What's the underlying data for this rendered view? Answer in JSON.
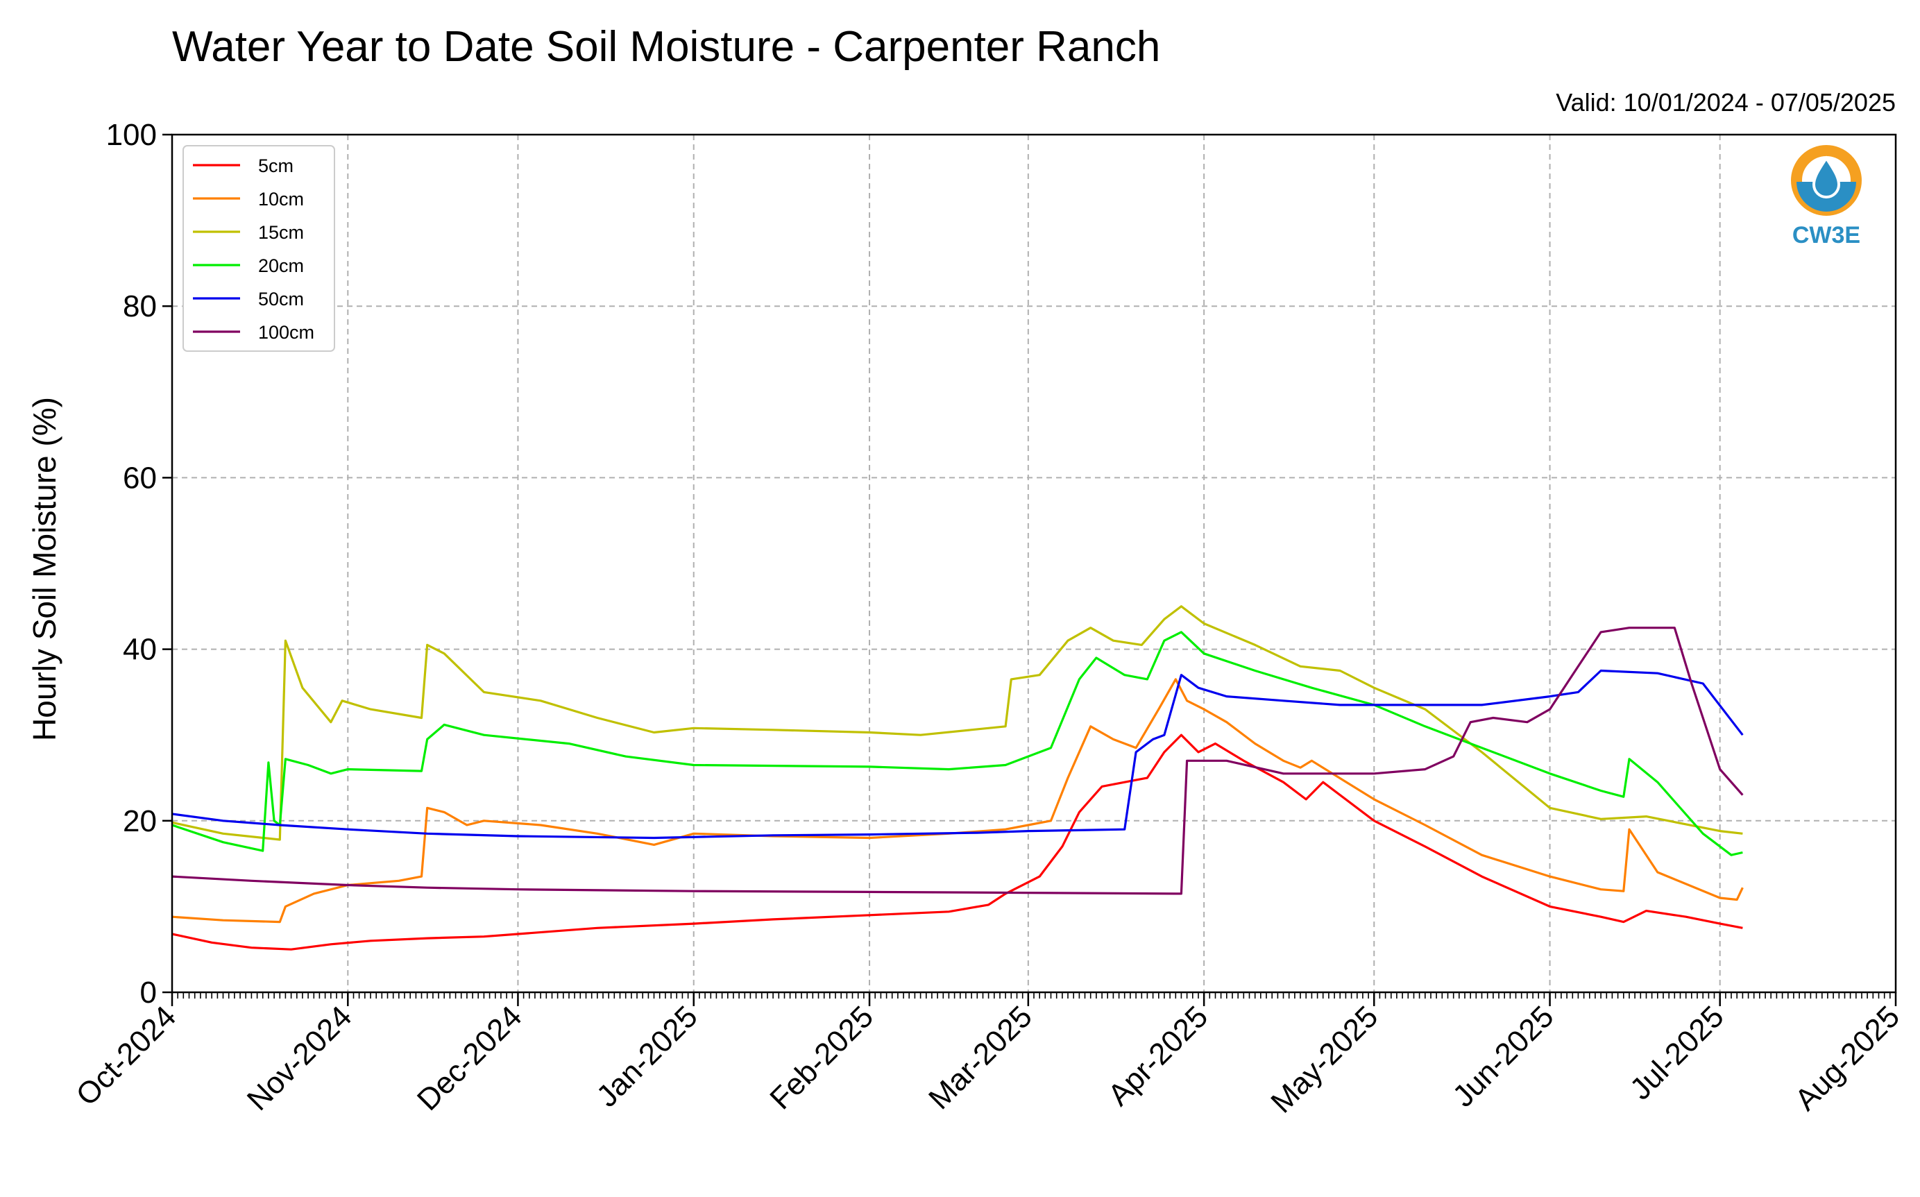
{
  "chart_data": {
    "type": "line",
    "title": "Water Year to Date Soil Moisture - Carpenter Ranch",
    "subtitle": "Valid: 10/01/2024 - 07/05/2025",
    "xlabel": "",
    "ylabel": "Hourly Soil Moisture (%)",
    "xlim": [
      "2024-10-01",
      "2025-08-01"
    ],
    "ylim": [
      0,
      100
    ],
    "yticks": [
      0,
      20,
      40,
      60,
      80,
      100
    ],
    "xticks": [
      {
        "date": "2024-10-01",
        "label": "Oct-2024"
      },
      {
        "date": "2024-11-01",
        "label": "Nov-2024"
      },
      {
        "date": "2024-12-01",
        "label": "Dec-2024"
      },
      {
        "date": "2025-01-01",
        "label": "Jan-2025"
      },
      {
        "date": "2025-02-01",
        "label": "Feb-2025"
      },
      {
        "date": "2025-03-01",
        "label": "Mar-2025"
      },
      {
        "date": "2025-04-01",
        "label": "Apr-2025"
      },
      {
        "date": "2025-05-01",
        "label": "May-2025"
      },
      {
        "date": "2025-06-01",
        "label": "Jun-2025"
      },
      {
        "date": "2025-07-01",
        "label": "Jul-2025"
      },
      {
        "date": "2025-08-01",
        "label": "Aug-2025"
      }
    ],
    "grid": true,
    "legend_position": "top-left",
    "series": [
      {
        "name": "5cm",
        "color": "#ff0000",
        "points": [
          [
            "2024-10-01",
            6.8
          ],
          [
            "2024-10-08",
            5.8
          ],
          [
            "2024-10-15",
            5.2
          ],
          [
            "2024-10-22",
            5.0
          ],
          [
            "2024-10-29",
            5.6
          ],
          [
            "2024-11-05",
            6.0
          ],
          [
            "2024-11-15",
            6.3
          ],
          [
            "2024-11-25",
            6.5
          ],
          [
            "2024-12-01",
            6.8
          ],
          [
            "2024-12-15",
            7.5
          ],
          [
            "2025-01-01",
            8.0
          ],
          [
            "2025-01-15",
            8.5
          ],
          [
            "2025-02-01",
            9.0
          ],
          [
            "2025-02-15",
            9.4
          ],
          [
            "2025-02-22",
            10.2
          ],
          [
            "2025-02-25",
            11.5
          ],
          [
            "2025-03-03",
            13.5
          ],
          [
            "2025-03-07",
            17.0
          ],
          [
            "2025-03-10",
            21.0
          ],
          [
            "2025-03-14",
            24.0
          ],
          [
            "2025-03-18",
            24.5
          ],
          [
            "2025-03-22",
            25.0
          ],
          [
            "2025-03-25",
            28.0
          ],
          [
            "2025-03-28",
            30.0
          ],
          [
            "2025-03-31",
            28.0
          ],
          [
            "2025-04-03",
            29.0
          ],
          [
            "2025-04-08",
            27.0
          ],
          [
            "2025-04-15",
            24.5
          ],
          [
            "2025-04-19",
            22.5
          ],
          [
            "2025-04-22",
            24.5
          ],
          [
            "2025-05-01",
            20.0
          ],
          [
            "2025-05-10",
            17.0
          ],
          [
            "2025-05-20",
            13.5
          ],
          [
            "2025-06-01",
            10.0
          ],
          [
            "2025-06-10",
            8.8
          ],
          [
            "2025-06-14",
            8.2
          ],
          [
            "2025-06-18",
            9.5
          ],
          [
            "2025-06-25",
            8.8
          ],
          [
            "2025-07-01",
            8.0
          ],
          [
            "2025-07-05",
            7.5
          ]
        ]
      },
      {
        "name": "10cm",
        "color": "#ff8000",
        "points": [
          [
            "2024-10-01",
            8.8
          ],
          [
            "2024-10-10",
            8.4
          ],
          [
            "2024-10-20",
            8.2
          ],
          [
            "2024-10-21",
            10.0
          ],
          [
            "2024-10-26",
            11.5
          ],
          [
            "2024-11-01",
            12.5
          ],
          [
            "2024-11-10",
            13.0
          ],
          [
            "2024-11-14",
            13.5
          ],
          [
            "2024-11-15",
            21.5
          ],
          [
            "2024-11-18",
            21.0
          ],
          [
            "2024-11-22",
            19.5
          ],
          [
            "2024-11-25",
            20.0
          ],
          [
            "2024-12-05",
            19.5
          ],
          [
            "2024-12-15",
            18.5
          ],
          [
            "2024-12-25",
            17.2
          ],
          [
            "2025-01-01",
            18.5
          ],
          [
            "2025-01-15",
            18.2
          ],
          [
            "2025-02-01",
            18.0
          ],
          [
            "2025-02-15",
            18.5
          ],
          [
            "2025-02-25",
            19.0
          ],
          [
            "2025-03-01",
            19.5
          ],
          [
            "2025-03-05",
            20.0
          ],
          [
            "2025-03-08",
            25.0
          ],
          [
            "2025-03-12",
            31.0
          ],
          [
            "2025-03-16",
            29.5
          ],
          [
            "2025-03-20",
            28.5
          ],
          [
            "2025-03-24",
            33.0
          ],
          [
            "2025-03-27",
            36.5
          ],
          [
            "2025-03-29",
            34.0
          ],
          [
            "2025-04-01",
            33.0
          ],
          [
            "2025-04-05",
            31.5
          ],
          [
            "2025-04-10",
            29.0
          ],
          [
            "2025-04-15",
            27.0
          ],
          [
            "2025-04-18",
            26.2
          ],
          [
            "2025-04-20",
            27.0
          ],
          [
            "2025-05-01",
            22.5
          ],
          [
            "2025-05-10",
            19.5
          ],
          [
            "2025-05-20",
            16.0
          ],
          [
            "2025-06-01",
            13.5
          ],
          [
            "2025-06-10",
            12.0
          ],
          [
            "2025-06-14",
            11.8
          ],
          [
            "2025-06-15",
            19.0
          ],
          [
            "2025-06-20",
            14.0
          ],
          [
            "2025-07-01",
            11.0
          ],
          [
            "2025-07-04",
            10.8
          ],
          [
            "2025-07-05",
            12.2
          ]
        ]
      },
      {
        "name": "15cm",
        "color": "#c0c000",
        "points": [
          [
            "2024-10-01",
            19.8
          ],
          [
            "2024-10-10",
            18.5
          ],
          [
            "2024-10-20",
            17.8
          ],
          [
            "2024-10-21",
            41.0
          ],
          [
            "2024-10-24",
            35.5
          ],
          [
            "2024-10-29",
            31.5
          ],
          [
            "2024-10-31",
            34.0
          ],
          [
            "2024-11-05",
            33.0
          ],
          [
            "2024-11-14",
            32.0
          ],
          [
            "2024-11-15",
            40.5
          ],
          [
            "2024-11-18",
            39.5
          ],
          [
            "2024-11-25",
            35.0
          ],
          [
            "2024-12-05",
            34.0
          ],
          [
            "2024-12-15",
            32.0
          ],
          [
            "2024-12-25",
            30.3
          ],
          [
            "2025-01-01",
            30.8
          ],
          [
            "2025-01-15",
            30.6
          ],
          [
            "2025-02-01",
            30.3
          ],
          [
            "2025-02-10",
            30.0
          ],
          [
            "2025-02-25",
            31.0
          ],
          [
            "2025-02-26",
            36.5
          ],
          [
            "2025-03-03",
            37.0
          ],
          [
            "2025-03-08",
            41.0
          ],
          [
            "2025-03-12",
            42.5
          ],
          [
            "2025-03-16",
            41.0
          ],
          [
            "2025-03-21",
            40.5
          ],
          [
            "2025-03-25",
            43.5
          ],
          [
            "2025-03-28",
            45.0
          ],
          [
            "2025-04-01",
            43.0
          ],
          [
            "2025-04-10",
            40.5
          ],
          [
            "2025-04-18",
            38.0
          ],
          [
            "2025-04-25",
            37.5
          ],
          [
            "2025-05-01",
            35.5
          ],
          [
            "2025-05-10",
            33.0
          ],
          [
            "2025-05-20",
            28.0
          ],
          [
            "2025-06-01",
            21.5
          ],
          [
            "2025-06-10",
            20.2
          ],
          [
            "2025-06-18",
            20.5
          ],
          [
            "2025-07-01",
            18.8
          ],
          [
            "2025-07-05",
            18.5
          ]
        ]
      },
      {
        "name": "20cm",
        "color": "#00ee00",
        "points": [
          [
            "2024-10-01",
            19.5
          ],
          [
            "2024-10-10",
            17.5
          ],
          [
            "2024-10-17",
            16.5
          ],
          [
            "2024-10-18",
            26.8
          ],
          [
            "2024-10-19",
            20.0
          ],
          [
            "2024-10-20",
            19.5
          ],
          [
            "2024-10-21",
            27.2
          ],
          [
            "2024-10-25",
            26.5
          ],
          [
            "2024-10-29",
            25.5
          ],
          [
            "2024-11-01",
            26.0
          ],
          [
            "2024-11-14",
            25.8
          ],
          [
            "2024-11-15",
            29.5
          ],
          [
            "2024-11-18",
            31.2
          ],
          [
            "2024-11-25",
            30.0
          ],
          [
            "2024-12-10",
            29.0
          ],
          [
            "2024-12-20",
            27.5
          ],
          [
            "2025-01-01",
            26.5
          ],
          [
            "2025-02-01",
            26.3
          ],
          [
            "2025-02-15",
            26.0
          ],
          [
            "2025-02-25",
            26.5
          ],
          [
            "2025-03-05",
            28.5
          ],
          [
            "2025-03-10",
            36.5
          ],
          [
            "2025-03-13",
            39.0
          ],
          [
            "2025-03-18",
            37.0
          ],
          [
            "2025-03-22",
            36.5
          ],
          [
            "2025-03-25",
            41.0
          ],
          [
            "2025-03-28",
            42.0
          ],
          [
            "2025-04-01",
            39.5
          ],
          [
            "2025-04-10",
            37.5
          ],
          [
            "2025-04-20",
            35.5
          ],
          [
            "2025-05-01",
            33.5
          ],
          [
            "2025-05-10",
            31.0
          ],
          [
            "2025-05-20",
            28.5
          ],
          [
            "2025-06-01",
            25.5
          ],
          [
            "2025-06-10",
            23.5
          ],
          [
            "2025-06-14",
            22.8
          ],
          [
            "2025-06-15",
            27.2
          ],
          [
            "2025-06-20",
            24.5
          ],
          [
            "2025-06-28",
            18.5
          ],
          [
            "2025-07-03",
            16.0
          ],
          [
            "2025-07-05",
            16.3
          ]
        ]
      },
      {
        "name": "50cm",
        "color": "#0000ee",
        "points": [
          [
            "2024-10-01",
            20.8
          ],
          [
            "2024-10-10",
            20.0
          ],
          [
            "2024-10-20",
            19.5
          ],
          [
            "2024-11-01",
            19.0
          ],
          [
            "2024-11-15",
            18.5
          ],
          [
            "2024-12-01",
            18.2
          ],
          [
            "2024-12-25",
            18.0
          ],
          [
            "2025-01-15",
            18.3
          ],
          [
            "2025-02-01",
            18.4
          ],
          [
            "2025-02-20",
            18.6
          ],
          [
            "2025-03-01",
            18.8
          ],
          [
            "2025-03-10",
            18.9
          ],
          [
            "2025-03-18",
            19.0
          ],
          [
            "2025-03-20",
            28.0
          ],
          [
            "2025-03-23",
            29.5
          ],
          [
            "2025-03-25",
            30.0
          ],
          [
            "2025-03-28",
            37.0
          ],
          [
            "2025-03-31",
            35.5
          ],
          [
            "2025-04-05",
            34.5
          ],
          [
            "2025-04-15",
            34.0
          ],
          [
            "2025-04-25",
            33.5
          ],
          [
            "2025-05-10",
            33.5
          ],
          [
            "2025-05-20",
            33.5
          ],
          [
            "2025-06-01",
            34.5
          ],
          [
            "2025-06-06",
            35.0
          ],
          [
            "2025-06-10",
            37.5
          ],
          [
            "2025-06-20",
            37.2
          ],
          [
            "2025-06-28",
            36.0
          ],
          [
            "2025-07-05",
            30.0
          ]
        ]
      },
      {
        "name": "100cm",
        "color": "#800060",
        "points": [
          [
            "2024-10-01",
            13.5
          ],
          [
            "2024-10-15",
            13.0
          ],
          [
            "2024-11-01",
            12.5
          ],
          [
            "2024-11-15",
            12.2
          ],
          [
            "2024-12-01",
            12.0
          ],
          [
            "2025-01-01",
            11.8
          ],
          [
            "2025-02-01",
            11.7
          ],
          [
            "2025-03-01",
            11.6
          ],
          [
            "2025-03-27",
            11.5
          ],
          [
            "2025-03-28",
            11.5
          ],
          [
            "2025-03-29",
            27.0
          ],
          [
            "2025-04-05",
            27.0
          ],
          [
            "2025-04-15",
            25.5
          ],
          [
            "2025-05-01",
            25.5
          ],
          [
            "2025-05-10",
            26.0
          ],
          [
            "2025-05-15",
            27.5
          ],
          [
            "2025-05-18",
            31.5
          ],
          [
            "2025-05-22",
            32.0
          ],
          [
            "2025-05-28",
            31.5
          ],
          [
            "2025-06-01",
            33.0
          ],
          [
            "2025-06-06",
            38.0
          ],
          [
            "2025-06-10",
            42.0
          ],
          [
            "2025-06-15",
            42.5
          ],
          [
            "2025-06-23",
            42.5
          ],
          [
            "2025-06-26",
            36.0
          ],
          [
            "2025-06-28",
            32.0
          ],
          [
            "2025-07-01",
            26.0
          ],
          [
            "2025-07-05",
            23.0
          ]
        ]
      }
    ]
  },
  "logo": {
    "text": "CW3E",
    "ring_color": "#f5a020",
    "drop_color": "#2a8fc4"
  }
}
